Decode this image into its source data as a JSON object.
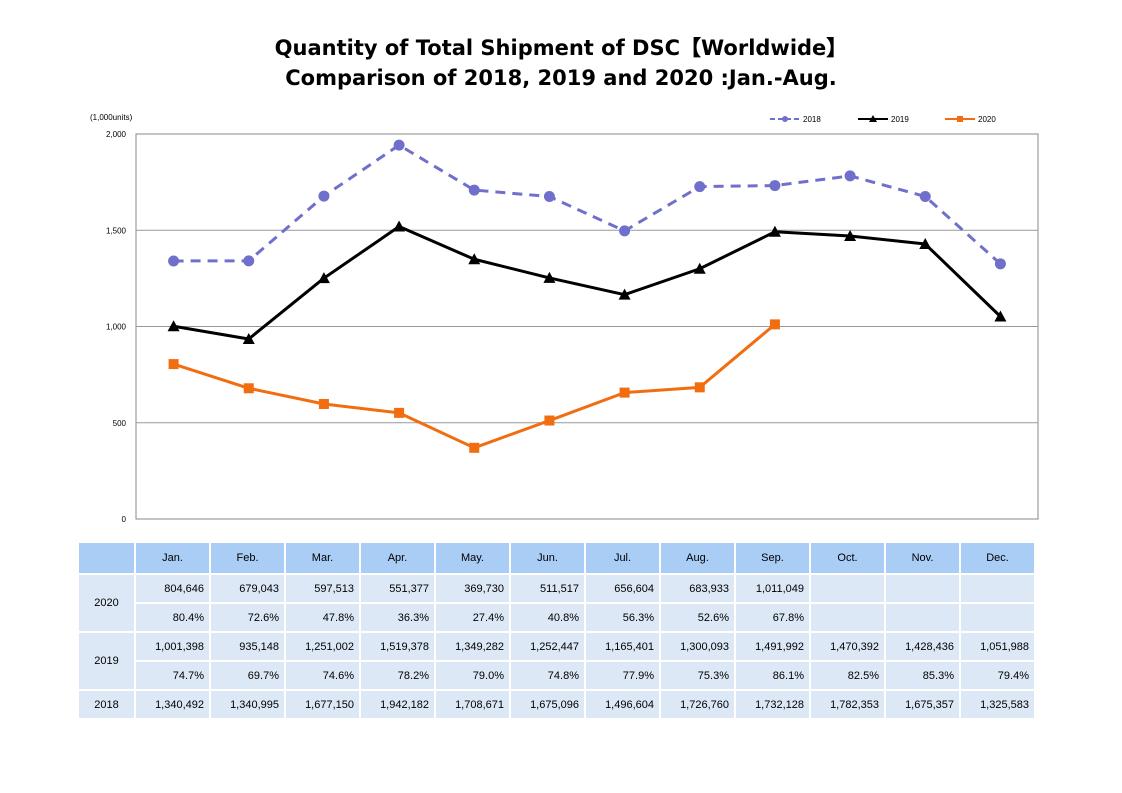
{
  "title_line1": "Quantity of Total Shipment of DSC【Worldwide】",
  "title_line2": "Comparison of 2018, 2019 and 2020 :Jan.-Aug.",
  "chart_data": {
    "type": "line",
    "unit_label": "(1,000units)",
    "categories": [
      "Jan.",
      "Feb.",
      "Mar.",
      "Apr.",
      "May.",
      "Jun.",
      "Jul.",
      "Aug.",
      "Sep.",
      "Oct.",
      "Nov.",
      "Dec."
    ],
    "ylim": [
      0,
      2000
    ],
    "yticks": [
      0,
      500,
      1000,
      1500,
      2000
    ],
    "ytick_labels": [
      "0",
      "500",
      "1,000",
      "1,500",
      "2,000"
    ],
    "grid": true,
    "legend_position": "top-right",
    "series": [
      {
        "name": "2018",
        "color": "#7070cc",
        "style": "dashed",
        "marker": "circle",
        "values": [
          1340.492,
          1340.995,
          1677.15,
          1942.182,
          1708.671,
          1675.096,
          1496.604,
          1726.76,
          1732.128,
          1782.353,
          1675.357,
          1325.583
        ]
      },
      {
        "name": "2019",
        "color": "#000000",
        "style": "solid",
        "marker": "triangle",
        "values": [
          1001.398,
          935.148,
          1251.002,
          1519.378,
          1349.282,
          1252.447,
          1165.401,
          1300.093,
          1491.992,
          1470.392,
          1428.436,
          1051.988
        ]
      },
      {
        "name": "2020",
        "color": "#f26c10",
        "style": "solid",
        "marker": "square",
        "values": [
          804.646,
          679.043,
          597.513,
          551.377,
          369.73,
          511.517,
          656.604,
          683.933,
          1011.049,
          null,
          null,
          null
        ]
      }
    ]
  },
  "table": {
    "months": [
      "Jan.",
      "Feb.",
      "Mar.",
      "Apr.",
      "May.",
      "Jun.",
      "Jul.",
      "Aug.",
      "Sep.",
      "Oct.",
      "Nov.",
      "Dec."
    ],
    "rows": [
      {
        "year": "2020",
        "values": [
          "804,646",
          "679,043",
          "597,513",
          "551,377",
          "369,730",
          "511,517",
          "656,604",
          "683,933",
          "1,011,049",
          "",
          "",
          ""
        ],
        "percents": [
          "80.4%",
          "72.6%",
          "47.8%",
          "36.3%",
          "27.4%",
          "40.8%",
          "56.3%",
          "52.6%",
          "67.8%",
          "",
          "",
          ""
        ]
      },
      {
        "year": "2019",
        "values": [
          "1,001,398",
          "935,148",
          "1,251,002",
          "1,519,378",
          "1,349,282",
          "1,252,447",
          "1,165,401",
          "1,300,093",
          "1,491,992",
          "1,470,392",
          "1,428,436",
          "1,051,988"
        ],
        "percents": [
          "74.7%",
          "69.7%",
          "74.6%",
          "78.2%",
          "79.0%",
          "74.8%",
          "77.9%",
          "75.3%",
          "86.1%",
          "82.5%",
          "85.3%",
          "79.4%"
        ]
      },
      {
        "year": "2018",
        "values": [
          "1,340,492",
          "1,340,995",
          "1,677,150",
          "1,942,182",
          "1,708,671",
          "1,675,096",
          "1,496,604",
          "1,726,760",
          "1,732,128",
          "1,782,353",
          "1,675,357",
          "1,325,583"
        ]
      }
    ]
  }
}
